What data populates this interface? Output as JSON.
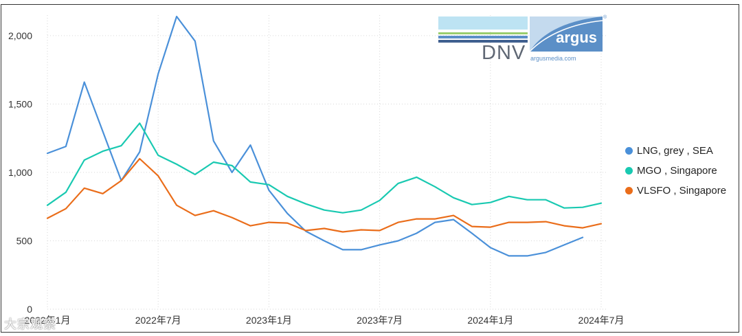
{
  "chart_data": {
    "type": "line",
    "title": "",
    "xlabel": "",
    "ylabel": "",
    "ylim": [
      0,
      2150
    ],
    "yticks": [
      0,
      500,
      1000,
      1500,
      2000
    ],
    "ytick_labels": [
      "0",
      "500",
      "1,000",
      "1,500",
      "2,000"
    ],
    "xtick_labels": [
      "2022年1月",
      "2022年7月",
      "2023年1月",
      "2023年7月",
      "2024年1月",
      "2024年7月"
    ],
    "xtick_index": [
      0,
      6,
      12,
      18,
      24,
      30
    ],
    "n_points": 31,
    "grid": true,
    "legend_position": "right",
    "series": [
      {
        "name": "LNG, grey , SEA",
        "color": "#4a90d9",
        "values": [
          1140,
          1190,
          1660,
          1300,
          940,
          1150,
          1720,
          2140,
          1960,
          1230,
          1000,
          1200,
          870,
          700,
          570,
          500,
          435,
          435,
          470,
          500,
          555,
          635,
          655,
          555,
          450,
          390,
          390,
          415,
          470,
          525,
          null
        ]
      },
      {
        "name": "MGO , Singapore",
        "color": "#19c9b1",
        "values": [
          760,
          855,
          1090,
          1155,
          1195,
          1360,
          1125,
          1060,
          985,
          1075,
          1050,
          930,
          910,
          825,
          770,
          725,
          705,
          725,
          795,
          920,
          965,
          895,
          815,
          765,
          780,
          825,
          800,
          800,
          740,
          745,
          775
        ]
      },
      {
        "name": "VLSFO , Singapore",
        "color": "#ea6d1a",
        "values": [
          665,
          735,
          885,
          845,
          940,
          1100,
          975,
          760,
          685,
          720,
          670,
          610,
          635,
          630,
          575,
          590,
          565,
          580,
          575,
          635,
          660,
          660,
          685,
          605,
          600,
          635,
          635,
          640,
          610,
          595,
          625
        ]
      }
    ]
  },
  "logo": {
    "dnv": "DNV",
    "argus": "argus",
    "url": "argusmedia.com",
    "registered": "®"
  },
  "watermark": "大宗观察"
}
